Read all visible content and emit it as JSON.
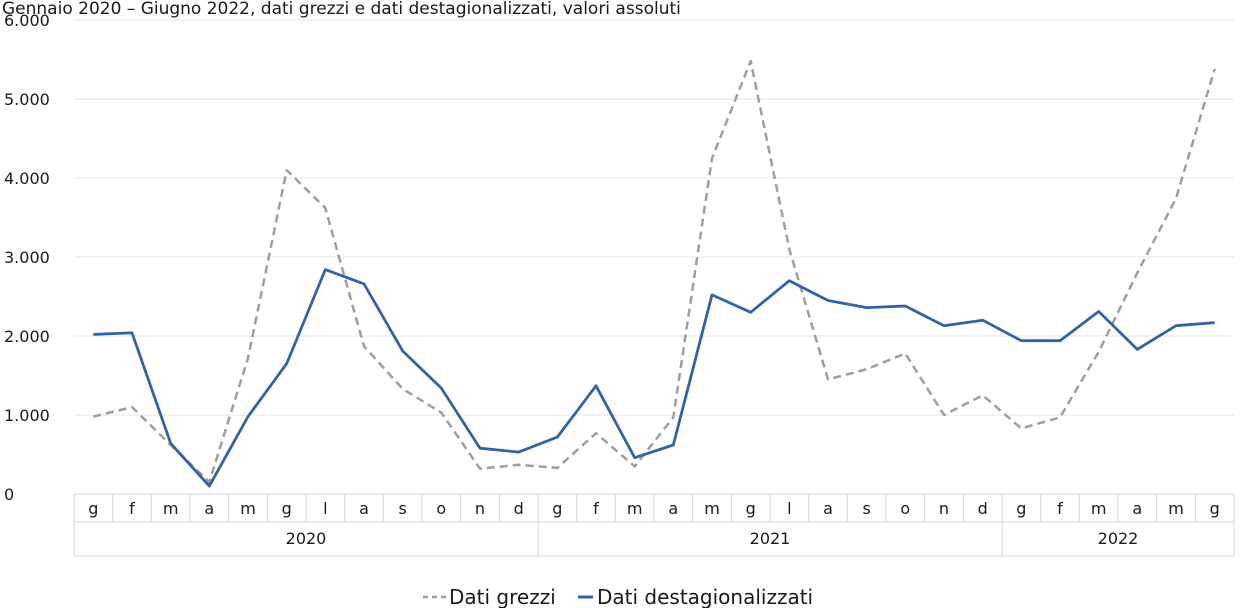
{
  "chart_data": {
    "type": "line",
    "title": "",
    "subtitle": "Gennaio 2020 – Giugno 2022, dati grezzi e dati destagionalizzati, valori assoluti",
    "xlabel": "",
    "ylabel": "",
    "ylim": [
      0,
      6000
    ],
    "yticks": [
      0,
      1000,
      2000,
      3000,
      4000,
      5000,
      6000
    ],
    "ytick_labels": [
      "0",
      "1.000",
      "2.000",
      "3.000",
      "4.000",
      "5.000",
      "6.000"
    ],
    "grid": "horizontal",
    "legend": "bottom-center",
    "categories": [
      "g",
      "f",
      "m",
      "a",
      "m",
      "g",
      "l",
      "a",
      "s",
      "o",
      "n",
      "d",
      "g",
      "f",
      "m",
      "a",
      "m",
      "g",
      "l",
      "a",
      "s",
      "o",
      "n",
      "d",
      "g",
      "f",
      "m",
      "a",
      "m",
      "g"
    ],
    "years": [
      {
        "label": "2020",
        "start": 0,
        "end": 11
      },
      {
        "label": "2021",
        "start": 12,
        "end": 23
      },
      {
        "label": "2022",
        "start": 24,
        "end": 29
      }
    ],
    "series": [
      {
        "name": "Dati grezzi",
        "color": "#9e9e9e",
        "style": "dashed",
        "values": [
          980,
          1100,
          620,
          150,
          1720,
          4100,
          3620,
          1870,
          1330,
          1030,
          320,
          370,
          330,
          770,
          350,
          970,
          4250,
          5480,
          3100,
          1450,
          1580,
          1780,
          1000,
          1250,
          830,
          970,
          1800,
          2800,
          3740,
          5380
        ]
      },
      {
        "name": "Dati destagionalizzati",
        "color": "#3263a6",
        "style": "solid",
        "values": [
          2020,
          2040,
          640,
          100,
          980,
          1650,
          2840,
          2660,
          1810,
          1340,
          580,
          530,
          720,
          1370,
          460,
          620,
          2520,
          2300,
          2700,
          2450,
          2360,
          2380,
          2130,
          2200,
          1940,
          1940,
          2310,
          1830,
          2130,
          2170
        ]
      }
    ]
  }
}
